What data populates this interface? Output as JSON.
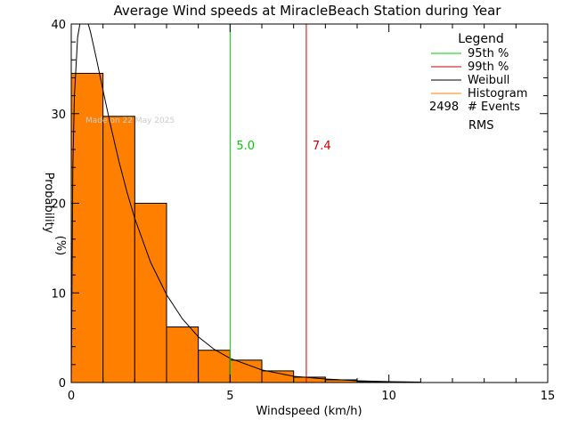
{
  "chart_data": {
    "type": "bar",
    "title": "Average Wind speeds at MiracleBeach Station during Year",
    "xlabel": "Windspeed (km/h)",
    "ylabel": "Probability",
    "ylabel_unit": "(%)",
    "xlim": [
      0,
      15
    ],
    "ylim": [
      0,
      40
    ],
    "x_ticks": [
      "0",
      "5",
      "10",
      "15"
    ],
    "y_ticks": [
      "0",
      "10",
      "20",
      "30",
      "40"
    ],
    "grid": false,
    "watermark": "Made on 22 May 2025",
    "histogram": {
      "bin_width": 1,
      "bin_starts": [
        0,
        1,
        2,
        3,
        4,
        5,
        6,
        7,
        8,
        9,
        10
      ],
      "values": [
        34.5,
        29.7,
        20.0,
        6.2,
        3.6,
        2.5,
        1.3,
        0.6,
        0.3,
        0.1,
        0.05
      ],
      "color": "#ff7f00"
    },
    "weibull_curve": {
      "color": "#000000",
      "x": [
        0.0,
        0.05,
        0.1,
        0.2,
        0.3,
        0.4,
        0.5,
        0.6,
        0.8,
        1.0,
        1.25,
        1.5,
        1.75,
        2.0,
        2.5,
        3.0,
        3.5,
        4.0,
        4.5,
        5.0,
        6.0,
        7.0,
        8.0,
        9.0,
        10.0,
        11.0
      ],
      "y": [
        0.0,
        24.0,
        32.0,
        38.5,
        40.6,
        41.0,
        40.4,
        39.2,
        36.0,
        32.6,
        28.5,
        24.7,
        21.3,
        18.3,
        13.4,
        9.8,
        7.1,
        5.1,
        3.7,
        2.7,
        1.4,
        0.7,
        0.4,
        0.2,
        0.1,
        0.05
      ]
    },
    "percentile_lines": [
      {
        "label": "5.0",
        "x": 5.0,
        "color": "#00cc00"
      },
      {
        "label": "7.4",
        "x": 7.4,
        "color": "#cc0000"
      }
    ],
    "legend": {
      "title": "Legend",
      "placement": "top-right",
      "entries": [
        {
          "name": "95th %",
          "color": "#00cc00"
        },
        {
          "name": "99th %",
          "color": "#cc0000"
        },
        {
          "name": "Weibull",
          "color": "#000000"
        },
        {
          "name": "Histogram",
          "color": "#ff7f00"
        }
      ],
      "events_count": "2498",
      "events_label": "# Events",
      "rms_label": "RMS"
    }
  }
}
